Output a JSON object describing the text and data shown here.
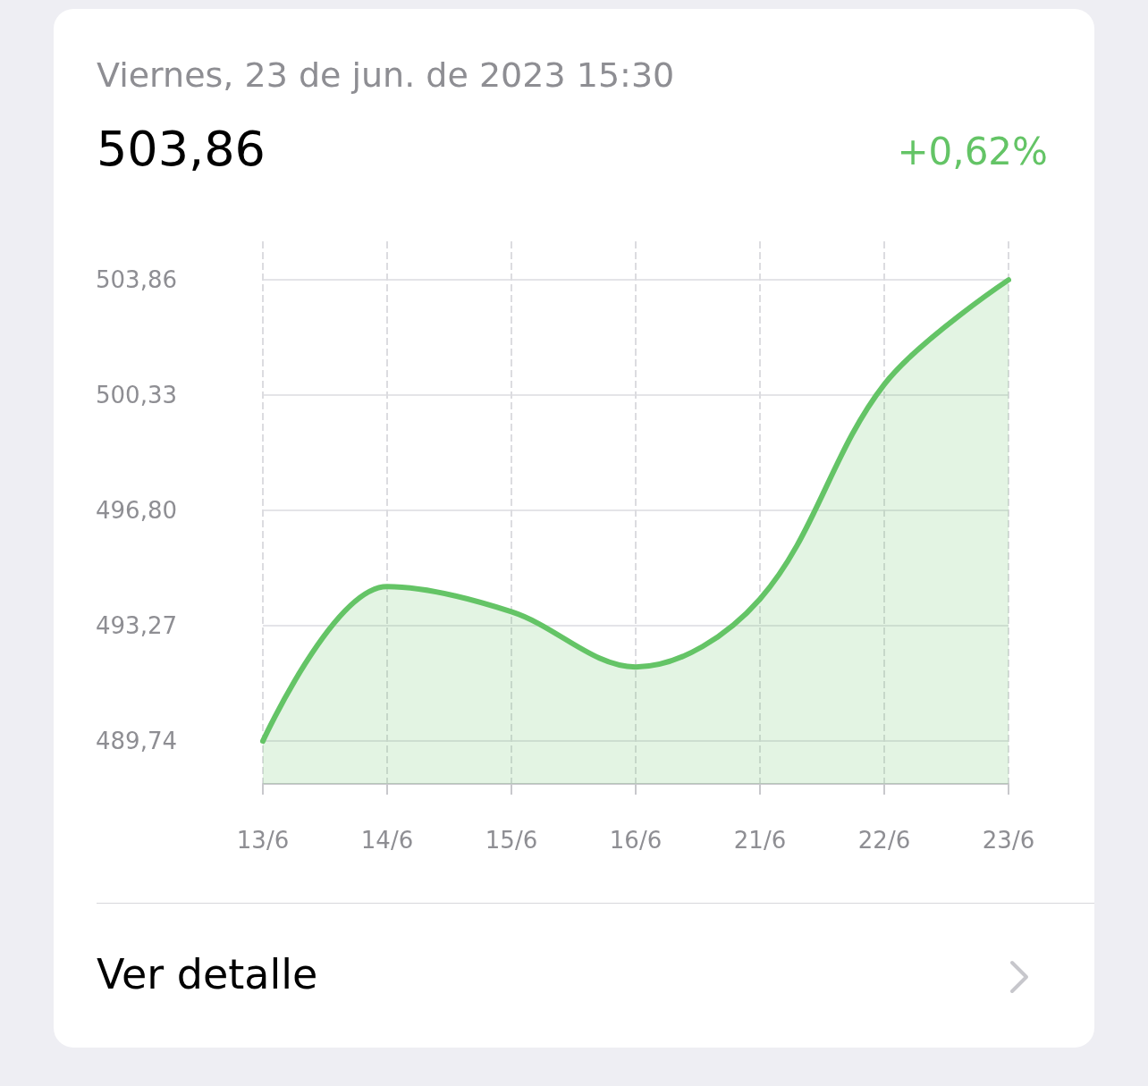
{
  "chart_data": {
    "type": "area",
    "title": "Viernes, 23 de jun. de 2023 15:30",
    "subtitle": "503,86",
    "annotations": [
      "+0,62%",
      "Ver detalle"
    ],
    "categories": [
      "13/6",
      "14/6",
      "15/6",
      "16/6",
      "21/6",
      "22/6",
      "23/6"
    ],
    "series": [
      {
        "color": "#64c466",
        "values": [
          489.74,
          494.47,
          493.7,
          492.01,
          494.09,
          500.66,
          503.86
        ]
      }
    ],
    "ylim": [
      488.43,
      505.04
    ],
    "yticks": [
      {
        "value": 489.74,
        "label": "489,74"
      },
      {
        "value": 493.27,
        "label": "493,27"
      },
      {
        "value": 496.8,
        "label": "496,80"
      },
      {
        "value": 500.33,
        "label": "500,33"
      },
      {
        "value": 503.86,
        "label": "503,86"
      }
    ],
    "grid": true,
    "marker": "none",
    "line_style": "solid"
  }
}
